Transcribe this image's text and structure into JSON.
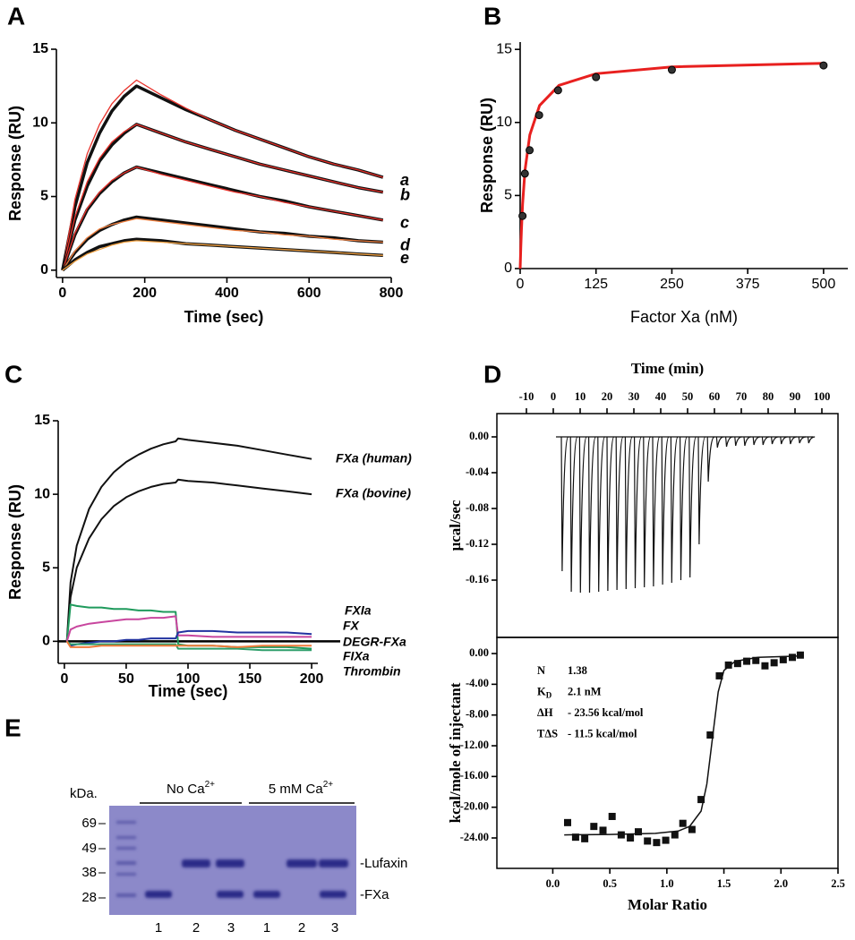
{
  "chart_data": [
    {
      "panel": "A",
      "type": "line",
      "xlabel": "Time (sec)",
      "ylabel": "Response (RU)",
      "xlim": [
        -15,
        800
      ],
      "ylim": [
        -0.5,
        15
      ],
      "xticks": [
        0,
        200,
        400,
        600,
        800
      ],
      "yticks": [
        0,
        5,
        10,
        15
      ],
      "x": [
        0,
        30,
        60,
        90,
        120,
        150,
        180,
        240,
        300,
        360,
        420,
        480,
        540,
        600,
        660,
        720,
        780
      ],
      "series": [
        {
          "name": "a",
          "color": "#111111",
          "fit_color": "#e8312a",
          "values": [
            0,
            4.3,
            7.3,
            9.3,
            10.8,
            11.8,
            12.5,
            11.7,
            10.9,
            10.2,
            9.5,
            8.9,
            8.3,
            7.7,
            7.2,
            6.8,
            6.3
          ],
          "fit": [
            0,
            4.8,
            7.9,
            9.9,
            11.3,
            12.2,
            12.9,
            11.9,
            11.0,
            10.2,
            9.5,
            8.9,
            8.3,
            7.7,
            7.2,
            6.8,
            6.3
          ]
        },
        {
          "name": "b",
          "color": "#111111",
          "fit_color": "#e8312a",
          "values": [
            0,
            3.4,
            5.7,
            7.4,
            8.5,
            9.3,
            9.9,
            9.3,
            8.7,
            8.2,
            7.7,
            7.2,
            6.8,
            6.4,
            6.0,
            5.6,
            5.3
          ],
          "fit": [
            0,
            3.6,
            6.0,
            7.6,
            8.7,
            9.4,
            9.9,
            9.3,
            8.7,
            8.2,
            7.7,
            7.2,
            6.8,
            6.4,
            6.0,
            5.6,
            5.3
          ]
        },
        {
          "name": "c",
          "color": "#111111",
          "fit_color": "#e8312a",
          "values": [
            0,
            2.4,
            4.1,
            5.2,
            6.0,
            6.6,
            7.0,
            6.6,
            6.2,
            5.8,
            5.4,
            5.0,
            4.7,
            4.3,
            4.0,
            3.7,
            3.4
          ],
          "fit": [
            0,
            2.5,
            4.2,
            5.3,
            6.1,
            6.6,
            7.0,
            6.5,
            6.1,
            5.7,
            5.3,
            5.0,
            4.6,
            4.3,
            4.0,
            3.7,
            3.4
          ]
        },
        {
          "name": "d",
          "color": "#111111",
          "fit_color": "#f08040",
          "values": [
            0,
            1.2,
            2.1,
            2.7,
            3.1,
            3.4,
            3.6,
            3.4,
            3.2,
            3.0,
            2.8,
            2.6,
            2.5,
            2.3,
            2.2,
            2.0,
            1.9
          ],
          "fit": [
            0,
            1.3,
            2.2,
            2.8,
            3.1,
            3.3,
            3.5,
            3.3,
            3.1,
            2.9,
            2.7,
            2.6,
            2.4,
            2.3,
            2.1,
            2.0,
            1.9
          ]
        },
        {
          "name": "e",
          "color": "#111111",
          "fit_color": "#f0a040",
          "values": [
            0,
            0.7,
            1.2,
            1.6,
            1.8,
            2.0,
            2.1,
            2.0,
            1.8,
            1.7,
            1.6,
            1.5,
            1.4,
            1.3,
            1.2,
            1.1,
            1.0
          ],
          "fit": [
            0,
            0.6,
            1.1,
            1.4,
            1.7,
            1.9,
            2.0,
            1.9,
            1.8,
            1.7,
            1.6,
            1.5,
            1.4,
            1.3,
            1.2,
            1.1,
            1.0
          ]
        }
      ]
    },
    {
      "panel": "B",
      "type": "scatter",
      "xlabel": "Factor Xa (nM)",
      "ylabel": "Response (RU)",
      "xlim": [
        0,
        540
      ],
      "ylim": [
        0,
        15.5
      ],
      "xticks": [
        0,
        125,
        250,
        375,
        500
      ],
      "yticks": [
        0,
        5,
        10,
        15
      ],
      "x": [
        3.9,
        7.8,
        15.6,
        31.25,
        62.5,
        125,
        250,
        500
      ],
      "values": [
        3.6,
        6.5,
        8.1,
        10.5,
        12.2,
        13.1,
        13.6,
        13.9
      ],
      "color": "#333333",
      "fit_x": [
        0,
        1,
        2,
        4,
        8,
        16,
        32,
        64,
        125,
        250,
        500
      ],
      "fit": [
        0,
        1.43,
        2.6,
        4.4,
        6.73,
        9.15,
        11.16,
        12.54,
        13.34,
        13.8,
        14.05
      ],
      "fit_color": "#e8201f"
    },
    {
      "panel": "C",
      "type": "line",
      "xlabel": "Time (sec)",
      "ylabel": "Response (RU)",
      "xlim": [
        -5,
        205
      ],
      "ylim": [
        -1.5,
        15
      ],
      "xticks": [
        0,
        50,
        100,
        150,
        200
      ],
      "yticks": [
        0,
        5,
        10,
        15
      ],
      "x": [
        2,
        5,
        10,
        20,
        30,
        40,
        50,
        60,
        70,
        80,
        90,
        92,
        100,
        120,
        140,
        160,
        180,
        200
      ],
      "series": [
        {
          "name": "FXa (human)",
          "color": "#111111",
          "values": [
            0,
            4,
            6.5,
            9,
            10.5,
            11.5,
            12.2,
            12.7,
            13.1,
            13.4,
            13.6,
            13.8,
            13.7,
            13.5,
            13.3,
            13.0,
            12.7,
            12.4
          ]
        },
        {
          "name": "FXa (bovine)",
          "color": "#111111",
          "values": [
            0,
            3,
            5,
            7,
            8.3,
            9.2,
            9.8,
            10.2,
            10.5,
            10.7,
            10.8,
            11,
            10.9,
            10.8,
            10.6,
            10.4,
            10.2,
            10.0
          ]
        },
        {
          "name": "FXIa",
          "color": "#1f9a5c",
          "values": [
            0,
            2.5,
            2.4,
            2.3,
            2.3,
            2.2,
            2.2,
            2.1,
            2.1,
            2.0,
            2.0,
            -0.2,
            -0.3,
            -0.3,
            -0.4,
            -0.4,
            -0.4,
            -0.5
          ]
        },
        {
          "name": "FX",
          "color": "#c8469e",
          "values": [
            0,
            0.8,
            1.0,
            1.2,
            1.3,
            1.4,
            1.5,
            1.5,
            1.6,
            1.6,
            1.7,
            0.4,
            0.4,
            0.3,
            0.3,
            0.3,
            0.3,
            0.3
          ]
        },
        {
          "name": "DEGR-FXa",
          "color": "#2233a0",
          "values": [
            0,
            -0.3,
            -0.2,
            -0.1,
            0,
            0,
            0.1,
            0.1,
            0.2,
            0.2,
            0.2,
            0.6,
            0.7,
            0.7,
            0.6,
            0.6,
            0.6,
            0.5
          ]
        },
        {
          "name": "FIXa",
          "color": "#2e9e6a",
          "values": [
            0,
            -0.2,
            -0.2,
            -0.2,
            -0.2,
            -0.2,
            -0.2,
            -0.2,
            -0.2,
            -0.2,
            -0.2,
            -0.5,
            -0.5,
            -0.5,
            -0.5,
            -0.6,
            -0.6,
            -0.6
          ]
        },
        {
          "name": "Thrombin",
          "color": "#f07a3a",
          "values": [
            0,
            -0.4,
            -0.4,
            -0.4,
            -0.3,
            -0.3,
            -0.3,
            -0.3,
            -0.3,
            -0.3,
            -0.3,
            -0.3,
            -0.3,
            -0.3,
            -0.4,
            -0.3,
            -0.3,
            -0.3
          ]
        }
      ]
    },
    {
      "panel": "D",
      "type": "itc",
      "title": "Time (min)",
      "ylabel": "μcal/sec",
      "xlim": [
        -21,
        106
      ],
      "ylim": [
        -0.224,
        0.026
      ],
      "xticks": [
        -10,
        0,
        10,
        20,
        30,
        40,
        50,
        60,
        70,
        80,
        90,
        100
      ],
      "yticks": [
        {
          "value": 0,
          "label": "0.00"
        },
        -0.04,
        -0.08,
        -0.12,
        -0.16
      ],
      "color": "#111111",
      "x": [
        3,
        6.4,
        9.8,
        13.2,
        16.6,
        20,
        23.4,
        26.8,
        30.2,
        33.6,
        37,
        40.4,
        43.8,
        47.2,
        50.6,
        54,
        57.4,
        60.8,
        64.2,
        67.6,
        71,
        74.4,
        77.8,
        81.2,
        84.6,
        88,
        91.4,
        94.8
      ],
      "values": [
        -0.15,
        -0.173,
        -0.174,
        -0.174,
        -0.173,
        -0.172,
        -0.171,
        -0.17,
        -0.169,
        -0.168,
        -0.167,
        -0.165,
        -0.163,
        -0.16,
        -0.157,
        -0.12,
        -0.05,
        -0.012,
        -0.011,
        -0.01,
        -0.01,
        -0.009,
        -0.009,
        -0.008,
        -0.008,
        -0.008,
        -0.007,
        -0.007
      ]
    },
    {
      "type": "scatter",
      "xlabel": "Molar Ratio",
      "ylabel": "kcal/mole of injectant",
      "xlim": [
        -0.49,
        2.5
      ],
      "ylim": [
        -27.96,
        2.1
      ],
      "xticks": [
        {
          "value": 0,
          "label": "0.0"
        },
        0.5,
        {
          "value": 1,
          "label": "1.0"
        },
        1.5,
        {
          "value": 2,
          "label": "2.0"
        },
        2.5
      ],
      "yticks": [
        {
          "value": 0,
          "label": "0.00"
        },
        {
          "value": -4,
          "label": "-4.00"
        },
        {
          "value": -8,
          "label": "-8.00"
        },
        {
          "value": -12,
          "label": "-12.00"
        },
        {
          "value": -16,
          "label": "-16.00"
        },
        {
          "value": -20,
          "label": "-20.00"
        },
        {
          "value": -24,
          "label": "-24.00"
        }
      ],
      "marker": "square",
      "color": "#111111",
      "x": [
        0.13,
        0.2,
        0.28,
        0.36,
        0.44,
        0.52,
        0.6,
        0.68,
        0.75,
        0.83,
        0.91,
        0.99,
        1.07,
        1.14,
        1.22,
        1.3,
        1.38,
        1.46,
        1.54,
        1.62,
        1.7,
        1.78,
        1.86,
        1.94,
        2.02,
        2.1,
        2.17
      ],
      "values": [
        -22,
        -23.9,
        -24.1,
        -22.5,
        -23,
        -21.2,
        -23.6,
        -24,
        -23.2,
        -24.4,
        -24.6,
        -24.3,
        -23.6,
        -22.1,
        -22.9,
        -19,
        -10.6,
        -2.9,
        -1.5,
        -1.3,
        -1.0,
        -0.9,
        -1.6,
        -1.2,
        -0.8,
        -0.5,
        -0.2
      ],
      "fit_x": [
        0.1,
        0.5,
        0.9,
        1.1,
        1.2,
        1.3,
        1.35,
        1.4,
        1.45,
        1.5,
        1.6,
        1.8,
        2.2
      ],
      "fit": [
        -23.6,
        -23.55,
        -23.4,
        -23.1,
        -22.5,
        -20.5,
        -17,
        -11,
        -5,
        -2.2,
        -1.0,
        -0.5,
        -0.3
      ],
      "fit_color": "#111111",
      "annotations": [
        {
          "label": "N",
          "value": "1.38"
        },
        {
          "label": "K",
          "sub": "D",
          "value": "2.1 nM"
        },
        {
          "label": "ΔH",
          "value": "- 23.56  kcal/mol"
        },
        {
          "label": "TΔS",
          "value": "- 11.5 kcal/mol"
        }
      ]
    }
  ],
  "gel": {
    "panel": "E",
    "unit": "kDa.",
    "markers": [
      "69",
      "49",
      "38",
      "28"
    ],
    "groups": [
      {
        "text": "No Ca",
        "sup": "2+"
      },
      {
        "text": "5 mM Ca",
        "sup": "2+"
      }
    ],
    "lanes": [
      "1",
      "2",
      "3",
      "1",
      "2",
      "3"
    ],
    "bands": [
      "-Lufaxin",
      "-FXa"
    ]
  }
}
